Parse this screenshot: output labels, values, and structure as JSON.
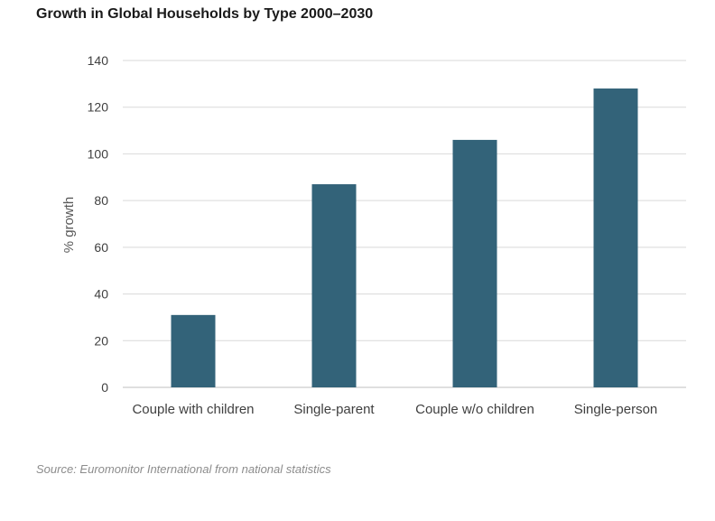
{
  "chart_data": {
    "type": "bar",
    "title": "Growth in Global Households by Type 2000–2030",
    "xlabel": "",
    "ylabel": "% growth",
    "categories": [
      "Couple with children",
      "Single-parent",
      "Couple w/o children",
      "Single-person"
    ],
    "values": [
      31,
      87,
      106,
      128
    ],
    "ylim": [
      0,
      140
    ],
    "yticks": [
      0,
      20,
      40,
      60,
      80,
      100,
      120,
      140
    ],
    "grid": true,
    "bar_color": "#336379",
    "grid_color": "#d9d9d9",
    "source": "Source: Euromonitor International from national statistics"
  }
}
